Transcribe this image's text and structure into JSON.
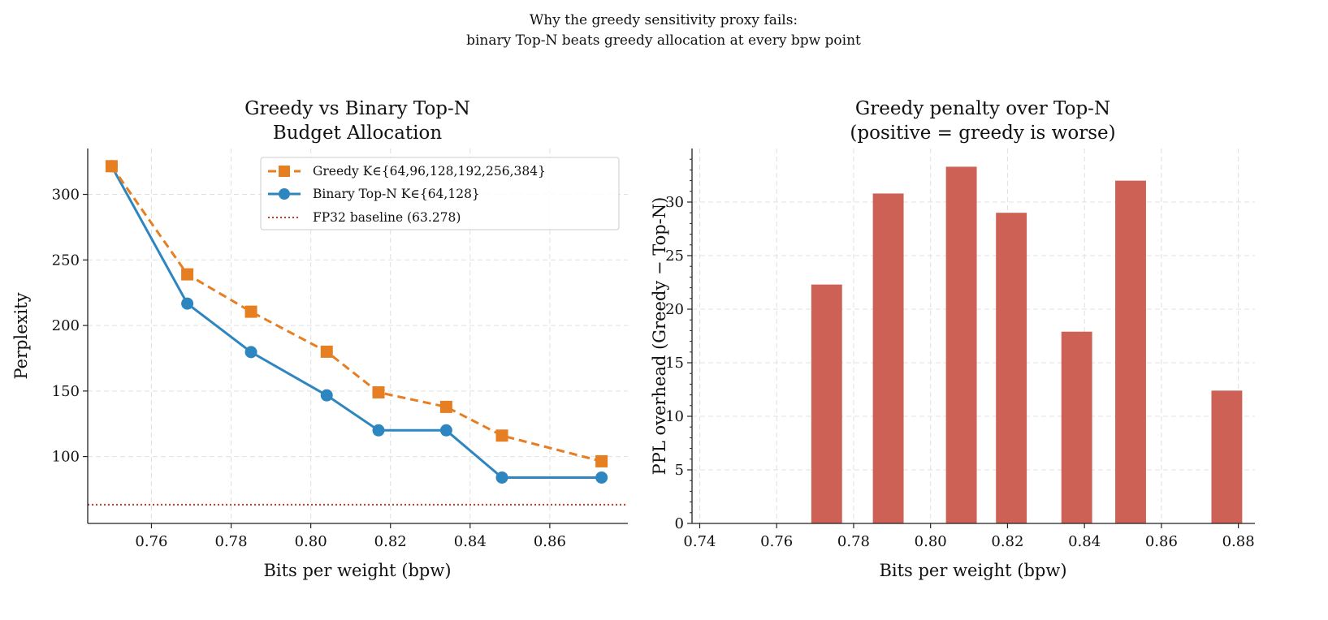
{
  "suptitle": [
    "Why the greedy sensitivity proxy fails:",
    "binary Top-N beats greedy allocation at every bpw point"
  ],
  "colors": {
    "greedy": "#e67e22",
    "binary": "#2e86c1",
    "baseline": "#c0392b",
    "bar": "#cd6155",
    "grid": "#e0e0e0"
  },
  "chart_data": [
    {
      "type": "line",
      "title": [
        "Greedy vs Binary Top-N",
        "Budget Allocation"
      ],
      "xlabel": "Bits per weight (bpw)",
      "ylabel": "Perplexity",
      "xlim": [
        0.744,
        0.8796
      ],
      "ylim": [
        49,
        335
      ],
      "xticks": [
        0.76,
        0.78,
        0.8,
        0.82,
        0.84,
        0.86
      ],
      "xtick_labels": [
        "0.76",
        "0.78",
        "0.80",
        "0.82",
        "0.84",
        "0.86"
      ],
      "yticks": [
        100,
        150,
        200,
        250,
        300
      ],
      "ytick_labels": [
        "100",
        "150",
        "200",
        "250",
        "300"
      ],
      "grid": true,
      "legend": "upper right",
      "series": [
        {
          "name": "Greedy K∈{64,96,128,192,256,384}",
          "style": "dashed",
          "marker": "square",
          "x": [
            0.75,
            0.769,
            0.785,
            0.804,
            0.817,
            0.834,
            0.848,
            0.873
          ],
          "y": [
            321.5,
            239.0,
            210.5,
            180.0,
            149.0,
            137.9,
            116.0,
            96.4
          ]
        },
        {
          "name": "Binary Top-N K∈{64,128}",
          "style": "solid",
          "marker": "circle",
          "x": [
            0.75,
            0.769,
            0.785,
            0.804,
            0.817,
            0.834,
            0.848,
            0.873
          ],
          "y": [
            321.5,
            216.7,
            179.7,
            146.7,
            120.0,
            120.0,
            84.0,
            84.0
          ]
        }
      ],
      "hlines": [
        {
          "name": "FP32 baseline (63.278)",
          "y": 63.278,
          "style": "dotted"
        }
      ]
    },
    {
      "type": "bar",
      "title": [
        "Greedy penalty over Top-N",
        "(positive = greedy is worse)"
      ],
      "xlabel": "Bits per weight (bpw)",
      "ylabel": "PPL overhead (Greedy − Top-N)",
      "xlim": [
        0.738,
        0.8843
      ],
      "ylim": [
        0,
        35
      ],
      "xticks": [
        0.74,
        0.76,
        0.78,
        0.8,
        0.82,
        0.84,
        0.86,
        0.88
      ],
      "xtick_labels": [
        "0.74",
        "0.76",
        "0.78",
        "0.80",
        "0.82",
        "0.84",
        "0.86",
        "0.88"
      ],
      "yticks": [
        0,
        5,
        10,
        15,
        20,
        25,
        30
      ],
      "ytick_labels": [
        "0",
        "5",
        "10",
        "15",
        "20",
        "25",
        "30"
      ],
      "grid": true,
      "bar_width": 0.008,
      "x": [
        0.75,
        0.769,
        0.785,
        0.804,
        0.817,
        0.834,
        0.848,
        0.873
      ],
      "values": [
        0.0,
        22.3,
        30.8,
        33.3,
        29.0,
        17.9,
        32.0,
        12.4
      ]
    }
  ]
}
